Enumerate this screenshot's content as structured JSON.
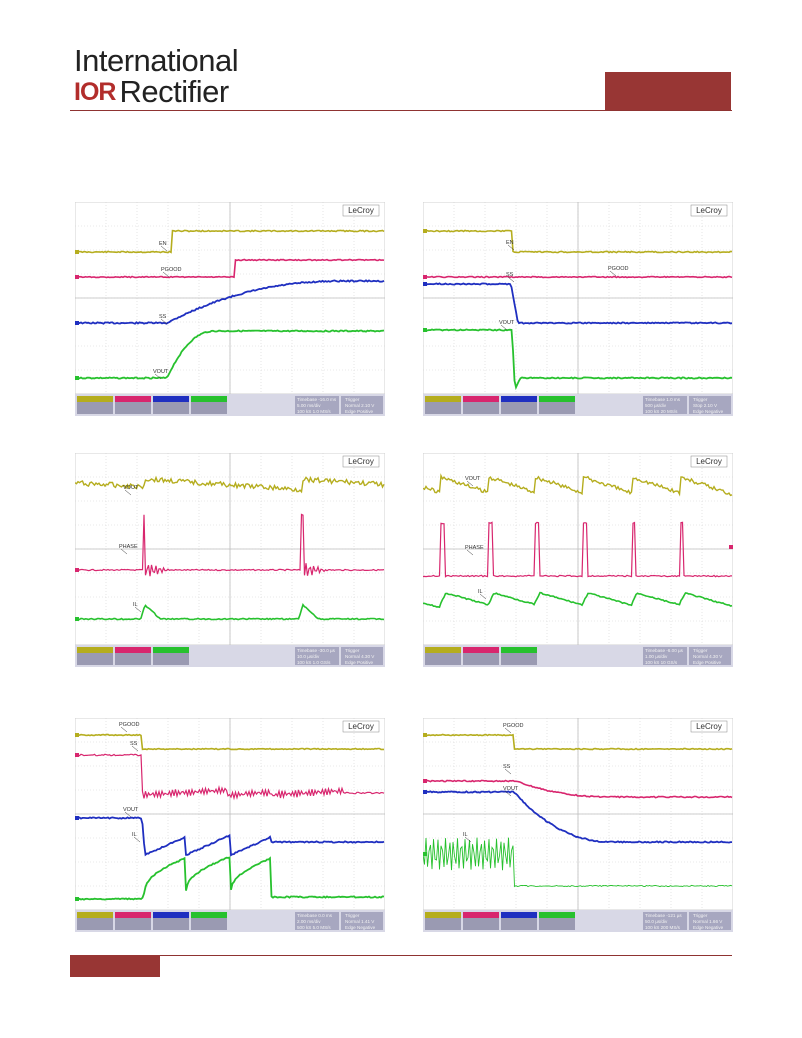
{
  "header": {
    "company_line1": "International",
    "company_logo_mark": "IOR",
    "company_line2": "Rectifier",
    "accent_color": "#983634"
  },
  "scopes": [
    {
      "brand": "LeCroy",
      "labels": [
        "EN",
        "PGOOD",
        "SS",
        "VOUT"
      ],
      "status_text": [
        "Timebase -16.0 ms",
        "Trigger",
        "5.00 ms/div",
        "Normal 2.10 V",
        "100 kS 1.0 MS/s",
        "Edge Positive"
      ]
    },
    {
      "brand": "LeCroy",
      "labels": [
        "EN",
        "PGOOD",
        "SS",
        "VOUT"
      ],
      "status_text": [
        "Timebase 1.0 ms",
        "Trigger",
        "500 µs/div",
        "Stop 2.10 V",
        "100 kS 20 MS/s",
        "Edge Negative"
      ]
    },
    {
      "brand": "LeCroy",
      "labels": [
        "VOUT",
        "PHASE",
        "IL"
      ],
      "status_text": [
        "Timebase -30.0 µs",
        "Trigger",
        "10.0 µs/div",
        "Normal 4.30 V",
        "100 kS 1.0 GS/s",
        "Edge Positive"
      ]
    },
    {
      "brand": "LeCroy",
      "labels": [
        "VOUT",
        "PHASE",
        "IL"
      ],
      "status_text": [
        "Timebase -6.00 µs",
        "Trigger",
        "1.00 µs/div",
        "Normal 4.30 V",
        "100 kS 10 GS/s",
        "Edge Positive"
      ]
    },
    {
      "brand": "LeCroy",
      "labels": [
        "PGOOD",
        "SS",
        "VOUT",
        "IL"
      ],
      "status_text": [
        "Timebase 0.0 ms",
        "Trigger",
        "2.00 ms/div",
        "Normal 1.41 V",
        "500 kS 5.0 MS/s",
        "Edge Negative"
      ]
    },
    {
      "brand": "LeCroy",
      "labels": [
        "PGOOD",
        "SS",
        "VOUT",
        "IL"
      ],
      "status_text": [
        "Timebase -121 µs",
        "Trigger",
        "50.0 µs/div",
        "Normal 1.66 V",
        "100 kS 200 MS/s",
        "Edge Negative"
      ]
    }
  ]
}
